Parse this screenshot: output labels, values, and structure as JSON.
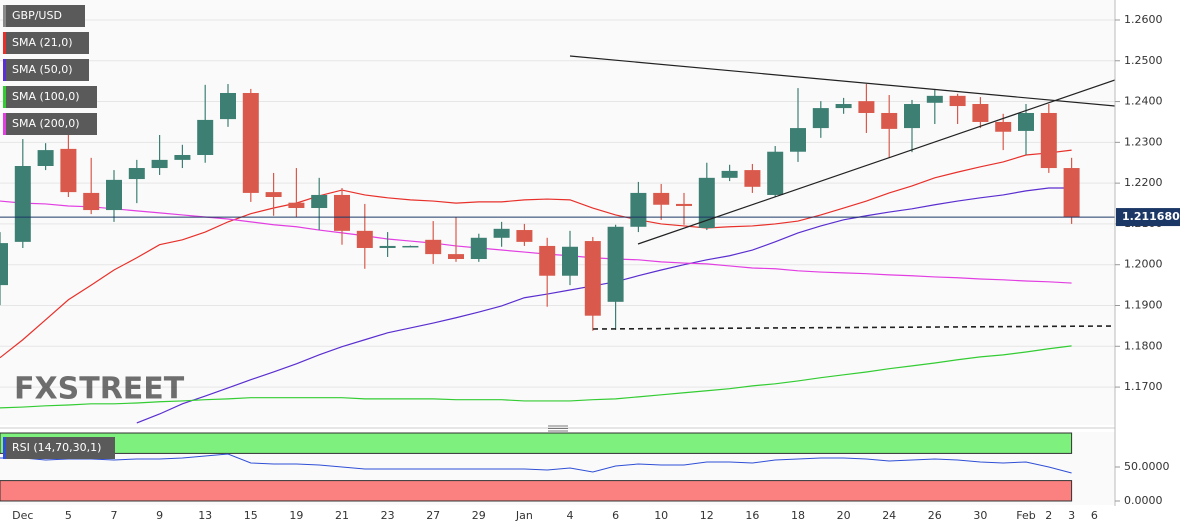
{
  "chart_data": [
    {
      "type": "candlestick",
      "title": "GBP/USD",
      "categories": [
        null,
        "Dec",
        null,
        "5",
        null,
        "7",
        null,
        "9",
        null,
        "13",
        null,
        "15",
        null,
        "19",
        null,
        "21",
        null,
        "23",
        null,
        "27",
        null,
        "29",
        null,
        "Jan",
        null,
        "4",
        null,
        "6",
        null,
        "10",
        null,
        "12",
        null,
        "16",
        null,
        "18",
        null,
        "20",
        null,
        "24",
        null,
        "26",
        null,
        "30",
        null,
        "Feb",
        "2",
        "3",
        "6"
      ],
      "open": [
        1.195,
        1.2056,
        1.2242,
        1.2284,
        1.2176,
        1.2134,
        1.221,
        1.2237,
        1.2257,
        1.2269,
        1.2357,
        1.2421,
        1.2178,
        1.2152,
        1.2139,
        1.2171,
        1.2083,
        1.2041,
        1.2046,
        1.2061,
        1.2026,
        1.2014,
        1.2066,
        1.2085,
        1.2046,
        1.1973,
        1.2058,
        1.1909,
        1.2093,
        1.2176,
        1.2149,
        1.209,
        1.2213,
        1.2232,
        1.2171,
        1.2277,
        1.2335,
        1.2384,
        1.2401,
        1.2372,
        1.2335,
        1.2397,
        1.2414,
        1.2394,
        1.235,
        1.2328,
        1.2372,
        1.2237,
        null
      ],
      "high": [
        1.208,
        1.2308,
        1.2298,
        1.2335,
        1.2262,
        1.2232,
        1.2257,
        1.2318,
        1.2294,
        1.2441,
        1.2443,
        1.2431,
        1.2225,
        1.2237,
        1.2213,
        1.2188,
        1.2149,
        1.208,
        1.2047,
        1.2107,
        1.2117,
        1.2076,
        1.2105,
        1.21,
        1.2066,
        1.2083,
        1.2068,
        1.2098,
        1.2203,
        1.2198,
        1.2176,
        1.225,
        1.2245,
        1.2247,
        1.2291,
        1.2433,
        1.2401,
        1.2409,
        1.2443,
        1.2416,
        1.2404,
        1.2431,
        1.2419,
        1.2411,
        1.237,
        1.2394,
        1.2394,
        1.2262,
        null
      ],
      "low": [
        1.1901,
        1.2041,
        1.2232,
        1.2166,
        1.2124,
        1.2105,
        1.2151,
        1.222,
        1.2237,
        1.225,
        1.2338,
        1.2154,
        1.212,
        1.2117,
        1.2085,
        1.2049,
        1.199,
        1.2019,
        1.2045,
        1.2002,
        1.2007,
        1.2007,
        1.2044,
        1.2046,
        1.1897,
        1.195,
        1.1838,
        1.184,
        1.208,
        1.211,
        1.2098,
        1.2085,
        1.2205,
        1.2176,
        1.2166,
        1.2252,
        1.2311,
        1.237,
        1.2323,
        1.2262,
        1.2276,
        1.2345,
        1.2345,
        1.2335,
        1.2281,
        1.2269,
        1.2225,
        1.21,
        null
      ],
      "close": [
        1.2053,
        1.2242,
        1.2281,
        1.2178,
        1.2134,
        1.2208,
        1.2237,
        1.2257,
        1.2269,
        1.2355,
        1.2421,
        1.2176,
        1.2166,
        1.2139,
        1.2171,
        1.2083,
        1.2041,
        1.2046,
        1.2046,
        1.2026,
        1.2014,
        1.2066,
        1.2088,
        1.2056,
        1.1973,
        1.2044,
        1.1875,
        1.2093,
        1.2176,
        1.2147,
        1.2144,
        1.2213,
        1.223,
        1.2191,
        1.2277,
        1.2335,
        1.2384,
        1.2394,
        1.2372,
        1.2333,
        1.2394,
        1.2414,
        1.2389,
        1.235,
        1.2326,
        1.2372,
        1.2237,
        1.2117,
        null
      ],
      "up_color": "#3d7f73",
      "down_color": "#d95a4c",
      "title_color": "#8a8a8a",
      "series": [
        {
          "name": "SMA (21,0)",
          "color": "#e8302a",
          "values": [
            1.1772,
            1.1816,
            1.1865,
            1.1914,
            1.195,
            1.1987,
            1.2017,
            1.2049,
            1.2061,
            1.208,
            1.2105,
            1.2125,
            1.2139,
            1.2151,
            1.2169,
            1.2183,
            1.2171,
            1.2164,
            1.2159,
            1.2156,
            1.2151,
            1.2154,
            1.2154,
            1.2159,
            1.2161,
            1.2159,
            1.2139,
            1.2122,
            1.211,
            1.21,
            1.2095,
            1.209,
            1.2093,
            1.2095,
            1.21,
            1.2107,
            1.2122,
            1.2139,
            1.2156,
            1.2176,
            1.2193,
            1.2213,
            1.2227,
            1.224,
            1.2252,
            1.2269,
            1.2274,
            1.2281,
            null
          ]
        },
        {
          "name": "SMA (50,0)",
          "color": "#5a2ed0",
          "values": [
            null,
            null,
            null,
            null,
            null,
            null,
            1.1612,
            1.1634,
            1.1659,
            1.1678,
            1.1698,
            1.1718,
            1.1737,
            1.1757,
            1.1779,
            1.1799,
            1.1816,
            1.1833,
            1.1845,
            1.1857,
            1.187,
            1.1884,
            1.1899,
            1.1919,
            1.1928,
            1.1938,
            1.1948,
            1.1958,
            1.1973,
            1.1987,
            1.2,
            1.2012,
            1.2022,
            1.2036,
            1.2056,
            1.2078,
            1.2095,
            1.211,
            1.212,
            1.2129,
            1.2137,
            1.2147,
            1.2156,
            1.2164,
            1.2171,
            1.2181,
            1.2188,
            1.2188,
            null
          ]
        },
        {
          "name": "SMA (100,0)",
          "color": "#33cc33",
          "values": [
            1.1649,
            1.1651,
            1.1654,
            1.1656,
            1.1659,
            1.1659,
            1.1661,
            1.1664,
            1.1666,
            1.1669,
            1.1671,
            1.1674,
            1.1674,
            1.1674,
            1.1674,
            1.1674,
            1.1671,
            1.1671,
            1.1671,
            1.1671,
            1.1669,
            1.1669,
            1.1669,
            1.1666,
            1.1666,
            1.1666,
            1.1669,
            1.1671,
            1.1676,
            1.1681,
            1.1686,
            1.1691,
            1.1696,
            1.1703,
            1.1708,
            1.1715,
            1.1723,
            1.173,
            1.1737,
            1.1745,
            1.1752,
            1.1759,
            1.1767,
            1.1774,
            1.1779,
            1.1786,
            1.1794,
            1.1801,
            null
          ]
        },
        {
          "name": "SMA (200,0)",
          "color": "#e23fe2",
          "values": [
            1.2156,
            1.2151,
            1.2149,
            1.2144,
            1.2142,
            1.2137,
            1.2132,
            1.2127,
            1.2122,
            1.2117,
            1.2112,
            1.2105,
            1.2098,
            1.2093,
            1.2085,
            1.2078,
            1.2071,
            1.2063,
            1.2058,
            1.2053,
            1.2046,
            1.2041,
            1.2036,
            1.2031,
            1.2026,
            1.2022,
            1.2017,
            1.2014,
            1.2012,
            1.2007,
            1.2004,
            1.2002,
            1.1997,
            1.1992,
            1.199,
            1.1985,
            1.1982,
            1.198,
            1.1978,
            1.1975,
            1.1973,
            1.197,
            1.1968,
            1.1965,
            1.1963,
            1.196,
            1.1958,
            1.1955,
            null
          ]
        }
      ],
      "ylim": [
        1.1607,
        1.2649
      ],
      "yticks": [
        {
          "value": 1.17,
          "label": "1.1700"
        },
        {
          "value": 1.18,
          "label": "1.1800"
        },
        {
          "value": 1.19,
          "label": "1.1900"
        },
        {
          "value": 1.2,
          "label": "1.2000"
        },
        {
          "value": 1.21,
          "label": "1.2100"
        },
        {
          "value": 1.22,
          "label": "1.2200"
        },
        {
          "value": 1.23,
          "label": "1.2300"
        },
        {
          "value": 1.24,
          "label": "1.2400"
        },
        {
          "value": 1.25,
          "label": "1.2500"
        },
        {
          "value": 1.26,
          "label": "1.2600"
        }
      ],
      "grid": true,
      "last_price": {
        "value": 1.21168,
        "label": "1.211680"
      },
      "last_price_color": "#1b3766",
      "watermark": [
        "FX",
        "STREET"
      ]
    },
    {
      "type": "line",
      "series": [
        {
          "name": "RSI (14,70,30,1)",
          "color": "#2f4fd6",
          "values": [
            63.2,
            63.2,
            60.3,
            61.8,
            61.8,
            60.3,
            61.8,
            61.8,
            63.2,
            66.2,
            69.1,
            55.9,
            54.4,
            54.4,
            52.9,
            50.0,
            47.1,
            47.1,
            47.1,
            47.1,
            47.1,
            47.1,
            47.1,
            47.1,
            45.6,
            48.5,
            42.6,
            51.5,
            54.4,
            52.9,
            52.9,
            57.4,
            57.4,
            55.9,
            60.3,
            61.8,
            63.2,
            63.2,
            61.8,
            58.8,
            60.3,
            61.8,
            60.3,
            57.4,
            55.9,
            57.4,
            50.0,
            41.2,
            null
          ]
        }
      ],
      "bands": [
        {
          "from": 70,
          "to": 100,
          "color": "#7df07d"
        },
        {
          "from": 0,
          "to": 30,
          "color": "#fb8080"
        }
      ],
      "ylim": [
        -5.9,
        101.5
      ],
      "yticks": [
        {
          "value": 0,
          "label": "0.0000"
        },
        {
          "value": 50,
          "label": "50.0000"
        }
      ]
    }
  ]
}
